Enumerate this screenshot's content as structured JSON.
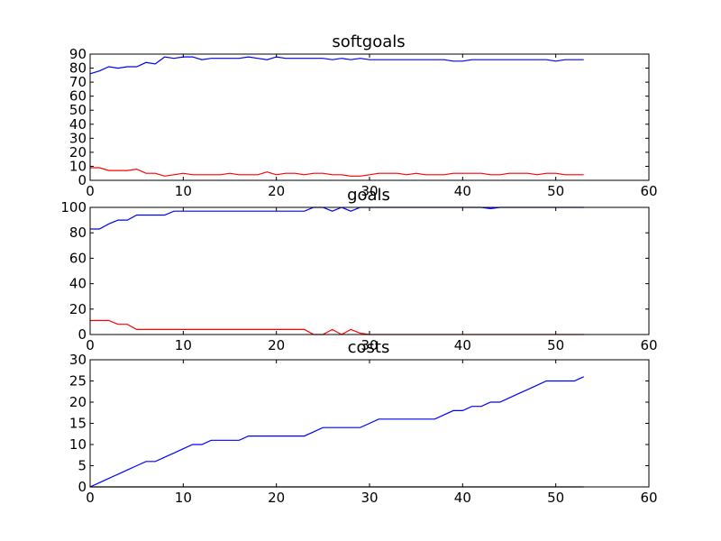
{
  "colors": {
    "blue": "#0000ff",
    "red": "#ff0000",
    "background": "#ffffff"
  },
  "chart_data": [
    {
      "type": "line",
      "title": "softgoals",
      "xlabel": "",
      "ylabel": "",
      "xlim": [
        0,
        60
      ],
      "ylim": [
        0,
        90
      ],
      "xticks": [
        0,
        10,
        20,
        30,
        40,
        50,
        60
      ],
      "yticks": [
        0,
        10,
        20,
        30,
        40,
        50,
        60,
        70,
        80,
        90
      ],
      "grid": false,
      "series": [
        {
          "color": "#0000ff",
          "x": [
            0,
            1,
            2,
            3,
            4,
            5,
            6,
            7,
            8,
            9,
            10,
            11,
            12,
            13,
            14,
            15,
            16,
            17,
            18,
            19,
            20,
            21,
            22,
            23,
            24,
            25,
            26,
            27,
            28,
            29,
            30,
            31,
            32,
            33,
            34,
            35,
            36,
            37,
            38,
            39,
            40,
            41,
            42,
            43,
            44,
            45,
            46,
            47,
            48,
            49,
            50,
            51,
            52,
            53
          ],
          "y": [
            76,
            78,
            81,
            80,
            81,
            81,
            84,
            83,
            88,
            87,
            88,
            88,
            86,
            87,
            87,
            87,
            87,
            88,
            87,
            86,
            88,
            87,
            87,
            87,
            87,
            87,
            86,
            87,
            86,
            87,
            86,
            86,
            86,
            86,
            86,
            86,
            86,
            86,
            86,
            85,
            85,
            86,
            86,
            86,
            86,
            86,
            86,
            86,
            86,
            86,
            85,
            86,
            86,
            86
          ]
        },
        {
          "color": "#ff0000",
          "x": [
            0,
            1,
            2,
            3,
            4,
            5,
            6,
            7,
            8,
            9,
            10,
            11,
            12,
            13,
            14,
            15,
            16,
            17,
            18,
            19,
            20,
            21,
            22,
            23,
            24,
            25,
            26,
            27,
            28,
            29,
            30,
            31,
            32,
            33,
            34,
            35,
            36,
            37,
            38,
            39,
            40,
            41,
            42,
            43,
            44,
            45,
            46,
            47,
            48,
            49,
            50,
            51,
            52,
            53
          ],
          "y": [
            9,
            9,
            7,
            7,
            7,
            8,
            5,
            5,
            3,
            4,
            5,
            4,
            4,
            4,
            4,
            5,
            4,
            4,
            4,
            6,
            4,
            5,
            5,
            4,
            5,
            5,
            4,
            4,
            3,
            3,
            4,
            5,
            5,
            5,
            4,
            5,
            4,
            4,
            4,
            5,
            5,
            5,
            5,
            4,
            4,
            5,
            5,
            5,
            4,
            5,
            5,
            4,
            4,
            4
          ]
        }
      ]
    },
    {
      "type": "line",
      "title": "goals",
      "xlabel": "",
      "ylabel": "",
      "xlim": [
        0,
        60
      ],
      "ylim": [
        0,
        100
      ],
      "xticks": [
        0,
        10,
        20,
        30,
        40,
        50,
        60
      ],
      "yticks": [
        0,
        20,
        40,
        60,
        80,
        100
      ],
      "grid": false,
      "series": [
        {
          "color": "#0000ff",
          "x": [
            0,
            1,
            2,
            3,
            4,
            5,
            6,
            7,
            8,
            9,
            10,
            11,
            12,
            13,
            14,
            15,
            16,
            17,
            18,
            19,
            20,
            21,
            22,
            23,
            24,
            25,
            26,
            27,
            28,
            29,
            30,
            31,
            32,
            33,
            34,
            35,
            36,
            37,
            38,
            39,
            40,
            41,
            42,
            43,
            44,
            45,
            46,
            47,
            48,
            49,
            50,
            51,
            52,
            53
          ],
          "y": [
            83,
            83,
            87,
            90,
            90,
            94,
            94,
            94,
            94,
            97,
            97,
            97,
            97,
            97,
            97,
            97,
            97,
            97,
            97,
            97,
            97,
            97,
            97,
            97,
            100,
            100,
            97,
            100,
            97,
            100,
            100,
            100,
            100,
            100,
            100,
            100,
            100,
            100,
            100,
            100,
            100,
            100,
            100,
            99,
            100,
            100,
            100,
            100,
            100,
            100,
            100,
            100,
            100,
            100
          ]
        },
        {
          "color": "#ff0000",
          "x": [
            0,
            1,
            2,
            3,
            4,
            5,
            6,
            7,
            8,
            9,
            10,
            11,
            12,
            13,
            14,
            15,
            16,
            17,
            18,
            19,
            20,
            21,
            22,
            23,
            24,
            25,
            26,
            27,
            28,
            29,
            30,
            31,
            32,
            33,
            34,
            35,
            36,
            37,
            38,
            39,
            40,
            41,
            42,
            43,
            44,
            45,
            46,
            47,
            48,
            49,
            50,
            51,
            52,
            53
          ],
          "y": [
            11,
            11,
            11,
            8,
            8,
            4,
            4,
            4,
            4,
            4,
            4,
            4,
            4,
            4,
            4,
            4,
            4,
            4,
            4,
            4,
            4,
            4,
            4,
            4,
            0,
            0,
            4,
            0,
            4,
            1,
            0,
            0,
            0,
            0,
            0,
            0,
            0,
            0,
            0,
            0,
            0,
            0,
            0,
            0,
            0,
            0,
            0,
            0,
            0,
            0,
            0,
            0,
            0,
            0
          ]
        }
      ]
    },
    {
      "type": "line",
      "title": "costs",
      "xlabel": "",
      "ylabel": "",
      "xlim": [
        0,
        60
      ],
      "ylim": [
        0,
        30
      ],
      "xticks": [
        0,
        10,
        20,
        30,
        40,
        50,
        60
      ],
      "yticks": [
        0,
        5,
        10,
        15,
        20,
        25,
        30
      ],
      "grid": false,
      "series": [
        {
          "color": "#0000ff",
          "x": [
            0,
            1,
            2,
            3,
            4,
            5,
            6,
            7,
            8,
            9,
            10,
            11,
            12,
            13,
            14,
            15,
            16,
            17,
            18,
            19,
            20,
            21,
            22,
            23,
            24,
            25,
            26,
            27,
            28,
            29,
            30,
            31,
            32,
            33,
            34,
            35,
            36,
            37,
            38,
            39,
            40,
            41,
            42,
            43,
            44,
            45,
            46,
            47,
            48,
            49,
            50,
            51,
            52,
            53
          ],
          "y": [
            0,
            1,
            2,
            3,
            4,
            5,
            6,
            6,
            7,
            8,
            9,
            10,
            10,
            11,
            11,
            11,
            11,
            12,
            12,
            12,
            12,
            12,
            12,
            12,
            13,
            14,
            14,
            14,
            14,
            14,
            15,
            16,
            16,
            16,
            16,
            16,
            16,
            16,
            17,
            18,
            18,
            19,
            19,
            20,
            20,
            21,
            22,
            23,
            24,
            25,
            25,
            25,
            25,
            26
          ]
        },
        {
          "color": "#000000",
          "x": [
            0,
            53
          ],
          "y": [
            0,
            0
          ]
        }
      ]
    }
  ]
}
